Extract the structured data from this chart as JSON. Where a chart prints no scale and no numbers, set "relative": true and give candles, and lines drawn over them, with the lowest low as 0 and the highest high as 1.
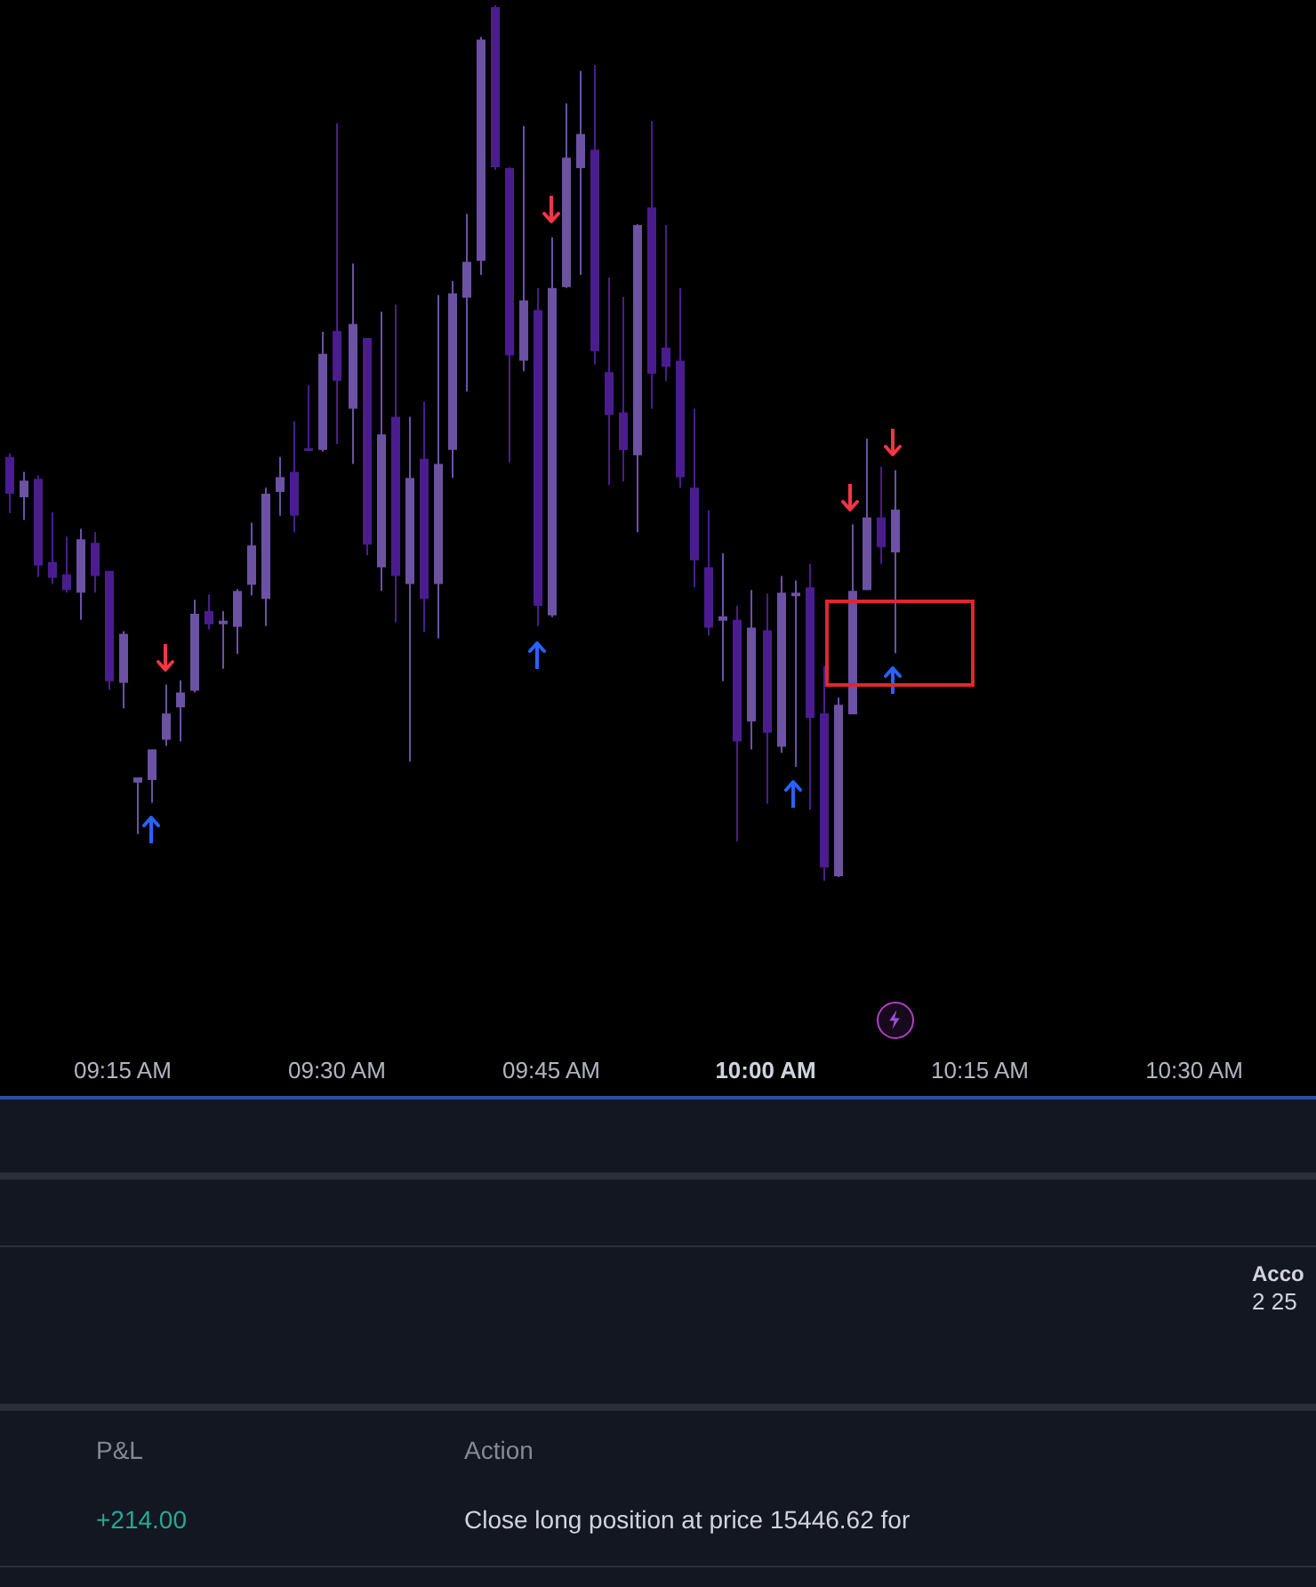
{
  "chart_data": {
    "type": "candlestick",
    "relative": true,
    "x": [
      9.1167,
      9.1333,
      9.15,
      9.1667,
      9.1833,
      9.2,
      9.2167,
      9.2333,
      9.25,
      9.2667,
      9.2833,
      9.3,
      9.3167,
      9.3333,
      9.35,
      9.3667,
      9.3833,
      9.4,
      9.4167,
      9.4333,
      9.45,
      9.4667,
      9.4833,
      9.5,
      9.5167,
      9.5333,
      9.55,
      9.5667,
      9.5833,
      9.6,
      9.6167,
      9.6333,
      9.65,
      9.6667,
      9.6833,
      9.7,
      9.7167,
      9.7333,
      9.75,
      9.7667,
      9.7833,
      9.8,
      9.8167,
      9.8333,
      9.85,
      9.8667,
      9.8833,
      9.9,
      9.9167,
      9.9333,
      9.95,
      9.9667,
      9.9833,
      10,
      10.0167,
      10.0333,
      10.05,
      10.0667,
      10.0833,
      10.1,
      10.1167,
      10.1333,
      10.15
    ],
    "ohlc": [
      [
        0.484,
        0.488,
        0.42,
        0.442
      ],
      [
        0.438,
        0.467,
        0.412,
        0.457
      ],
      [
        0.459,
        0.463,
        0.347,
        0.36
      ],
      [
        0.364,
        0.421,
        0.339,
        0.346
      ],
      [
        0.35,
        0.393,
        0.329,
        0.332
      ],
      [
        0.329,
        0.402,
        0.298,
        0.39
      ],
      [
        0.386,
        0.398,
        0.329,
        0.348
      ],
      [
        0.354,
        0.354,
        0.218,
        0.228
      ],
      [
        0.226,
        0.285,
        0.197,
        0.282
      ],
      [
        0.112,
        0.118,
        0.053,
        0.118
      ],
      [
        0.115,
        0.15,
        0.089,
        0.15
      ],
      [
        0.161,
        0.224,
        0.154,
        0.191
      ],
      [
        0.198,
        0.229,
        0.159,
        0.215
      ],
      [
        0.217,
        0.321,
        0.215,
        0.305
      ],
      [
        0.308,
        0.327,
        0.287,
        0.293
      ],
      [
        0.293,
        0.308,
        0.242,
        0.297
      ],
      [
        0.29,
        0.333,
        0.259,
        0.331
      ],
      [
        0.338,
        0.409,
        0.326,
        0.383
      ],
      [
        0.322,
        0.449,
        0.291,
        0.442
      ],
      [
        0.444,
        0.484,
        0.417,
        0.461
      ],
      [
        0.467,
        0.525,
        0.398,
        0.417
      ],
      [
        0.494,
        0.566,
        0.491,
        0.491
      ],
      [
        0.492,
        0.627,
        0.49,
        0.602
      ],
      [
        0.628,
        0.865,
        0.499,
        0.571
      ],
      [
        0.539,
        0.705,
        0.476,
        0.636
      ],
      [
        0.62,
        0.62,
        0.372,
        0.384
      ],
      [
        0.358,
        0.65,
        0.331,
        0.51
      ],
      [
        0.53,
        0.658,
        0.295,
        0.348
      ],
      [
        0.339,
        0.53,
        0.136,
        0.46
      ],
      [
        0.482,
        0.547,
        0.284,
        0.322
      ],
      [
        0.339,
        0.669,
        0.277,
        0.476
      ],
      [
        0.492,
        0.685,
        0.46,
        0.671
      ],
      [
        0.666,
        0.762,
        0.559,
        0.707
      ],
      [
        0.708,
        0.964,
        0.692,
        0.961
      ],
      [
        0.998,
        1,
        0.812,
        0.815
      ],
      [
        0.814,
        0.815,
        0.478,
        0.6
      ],
      [
        0.594,
        0.862,
        0.582,
        0.663
      ],
      [
        0.652,
        0.677,
        0.291,
        0.314
      ],
      [
        0.303,
        0.735,
        0.301,
        0.677
      ],
      [
        0.678,
        0.888,
        0.677,
        0.826
      ],
      [
        0.814,
        0.925,
        0.692,
        0.853
      ],
      [
        0.835,
        0.932,
        0.59,
        0.605
      ],
      [
        0.581,
        0.689,
        0.452,
        0.532
      ],
      [
        0.535,
        0.667,
        0.456,
        0.492
      ],
      [
        0.486,
        0.75,
        0.398,
        0.749
      ],
      [
        0.769,
        0.868,
        0.539,
        0.579
      ],
      [
        0.609,
        0.749,
        0.571,
        0.587
      ],
      [
        0.594,
        0.677,
        0.449,
        0.461
      ],
      [
        0.449,
        0.539,
        0.335,
        0.366
      ],
      [
        0.358,
        0.423,
        0.28,
        0.289
      ],
      [
        0.297,
        0.374,
        0.228,
        0.302
      ],
      [
        0.298,
        0.314,
        0.045,
        0.159
      ],
      [
        0.182,
        0.332,
        0.15,
        0.289
      ],
      [
        0.286,
        0.328,
        0.088,
        0.169
      ],
      [
        0.153,
        0.348,
        0.146,
        0.329
      ],
      [
        0.325,
        0.343,
        0.13,
        0.329
      ],
      [
        0.335,
        0.362,
        0.081,
        0.186
      ],
      [
        0.191,
        0.245,
        0,
        0.015
      ],
      [
        0.005,
        0.209,
        0.004,
        0.201
      ],
      [
        0.19,
        0.407,
        0.19,
        0.331
      ],
      [
        0.332,
        0.505,
        0.332,
        0.415
      ],
      [
        0.415,
        0.473,
        0.362,
        0.381
      ],
      [
        0.375,
        0.469,
        0.26,
        0.424
      ]
    ],
    "colors": [
      "#4a1d8f",
      "#6b52a3",
      "#4a1d8f",
      "#4a1d8f",
      "#4a1d8f",
      "#6b52a3",
      "#4a1d8f",
      "#4a1d8f",
      "#6b52a3",
      "#6b52a3",
      "#6b52a3",
      "#6b52a3",
      "#6b52a3",
      "#6b52a3",
      "#4a1d8f",
      "#6b52a3",
      "#6b52a3",
      "#6b52a3",
      "#6b52a3",
      "#6b52a3",
      "#4a1d8f",
      "#4a1d8f",
      "#6b52a3",
      "#4a1d8f",
      "#6b52a3",
      "#4a1d8f",
      "#6b52a3",
      "#4a1d8f",
      "#6b52a3",
      "#4a1d8f",
      "#6b52a3",
      "#6b52a3",
      "#6b52a3",
      "#6b52a3",
      "#4a1d8f",
      "#4a1d8f",
      "#6b52a3",
      "#4a1d8f",
      "#6b52a3",
      "#6b52a3",
      "#6b52a3",
      "#4a1d8f",
      "#4a1d8f",
      "#4a1d8f",
      "#6b52a3",
      "#4a1d8f",
      "#4a1d8f",
      "#4a1d8f",
      "#4a1d8f",
      "#4a1d8f",
      "#6b52a3",
      "#4a1d8f",
      "#6b52a3",
      "#4a1d8f",
      "#6b52a3",
      "#6b52a3",
      "#4a1d8f",
      "#4a1d8f",
      "#6b52a3",
      "#6b52a3",
      "#6b52a3",
      "#4a1d8f",
      "#6b52a3"
    ],
    "xlim": [
      9.107,
      10.642
    ],
    "xticks": [
      {
        "value": 9.25,
        "label": "09:15 AM"
      },
      {
        "value": 9.5,
        "label": "09:30 AM"
      },
      {
        "value": 9.75,
        "label": "09:45 AM"
      },
      {
        "value": 10,
        "label": "10:00 AM"
      },
      {
        "value": 10.25,
        "label": "10:15 AM"
      },
      {
        "value": 10.5,
        "label": "10:30 AM"
      }
    ],
    "annotations": [
      "Acco",
      "2 25",
      "P&L",
      "Action",
      "+214.00",
      "Close long position at price 15446.62 for"
    ]
  }
}
